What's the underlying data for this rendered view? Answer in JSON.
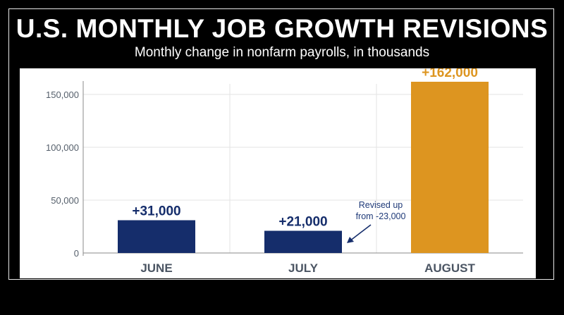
{
  "colors": {
    "navy": "#152d6b",
    "gold": "#dd9520",
    "grid": "#e3e3e3",
    "axis": "#8a8a8a"
  },
  "chart_data": {
    "type": "bar",
    "title": "U.S. MONTHLY JOB GROWTH REVISIONS",
    "subtitle": "Monthly change in nonfarm payrolls, in thousands",
    "categories": [
      "JUNE",
      "JULY",
      "AUGUST"
    ],
    "values": [
      31000,
      21000,
      162000
    ],
    "data_labels": [
      "+31,000",
      "+21,000",
      "+162,000"
    ],
    "bar_colors": [
      "#152d6b",
      "#152d6b",
      "#dd9520"
    ],
    "ylim": [
      0,
      160000
    ],
    "yticks": [
      0,
      50000,
      100000,
      150000
    ],
    "ytick_labels": [
      "0",
      "50,000",
      "100,000",
      "150,000"
    ],
    "grid": true,
    "annotation": {
      "category": "JULY",
      "lines": [
        "Revised up",
        "from -23,000"
      ]
    }
  }
}
